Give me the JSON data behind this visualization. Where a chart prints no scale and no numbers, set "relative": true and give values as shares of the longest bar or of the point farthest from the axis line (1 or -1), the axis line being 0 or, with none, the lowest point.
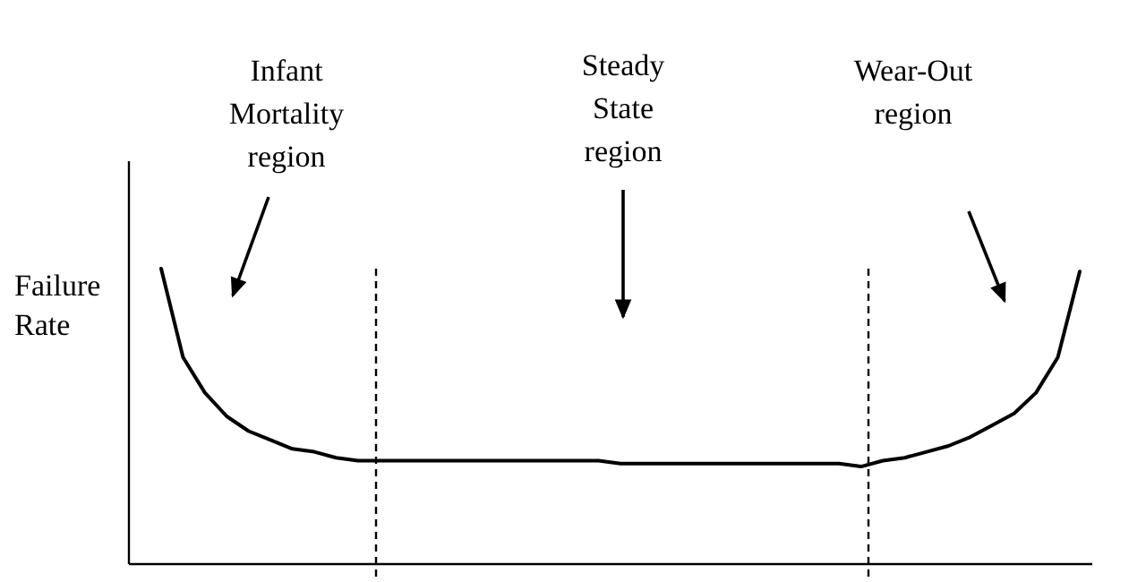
{
  "chart_data": {
    "type": "line",
    "relative": true,
    "ylabel": "Failure\nRate",
    "marker": "none",
    "line_style": "solid",
    "categories": [
      null,
      null,
      null,
      null,
      null,
      null,
      null,
      null,
      null,
      null,
      null,
      null,
      null,
      null,
      null,
      null,
      null,
      null,
      null,
      null,
      null,
      null,
      null,
      null,
      null,
      null,
      null,
      null,
      null,
      null,
      null,
      null,
      null,
      null,
      null,
      null,
      null,
      null,
      null,
      null,
      null,
      null,
      null
    ],
    "series": [
      {
        "color": "#000000",
        "values": [
          1,
          0.7,
          0.58,
          0.5,
          0.45,
          0.42,
          0.39,
          0.38,
          0.36,
          0.35,
          0.35,
          0.35,
          0.35,
          0.35,
          0.35,
          0.35,
          0.35,
          0.35,
          0.35,
          0.35,
          0.35,
          0.34,
          0.34,
          0.34,
          0.34,
          0.34,
          0.34,
          0.34,
          0.34,
          0.34,
          0.34,
          0.34,
          0.33,
          0.35,
          0.36,
          0.38,
          0.4,
          0.43,
          0.47,
          0.51,
          0.58,
          0.7,
          0.99
        ]
      }
    ],
    "annotations": [
      "Infant\nMortality\nregion",
      "Steady\nState\nregion",
      "Wear-Out\nregion"
    ]
  }
}
